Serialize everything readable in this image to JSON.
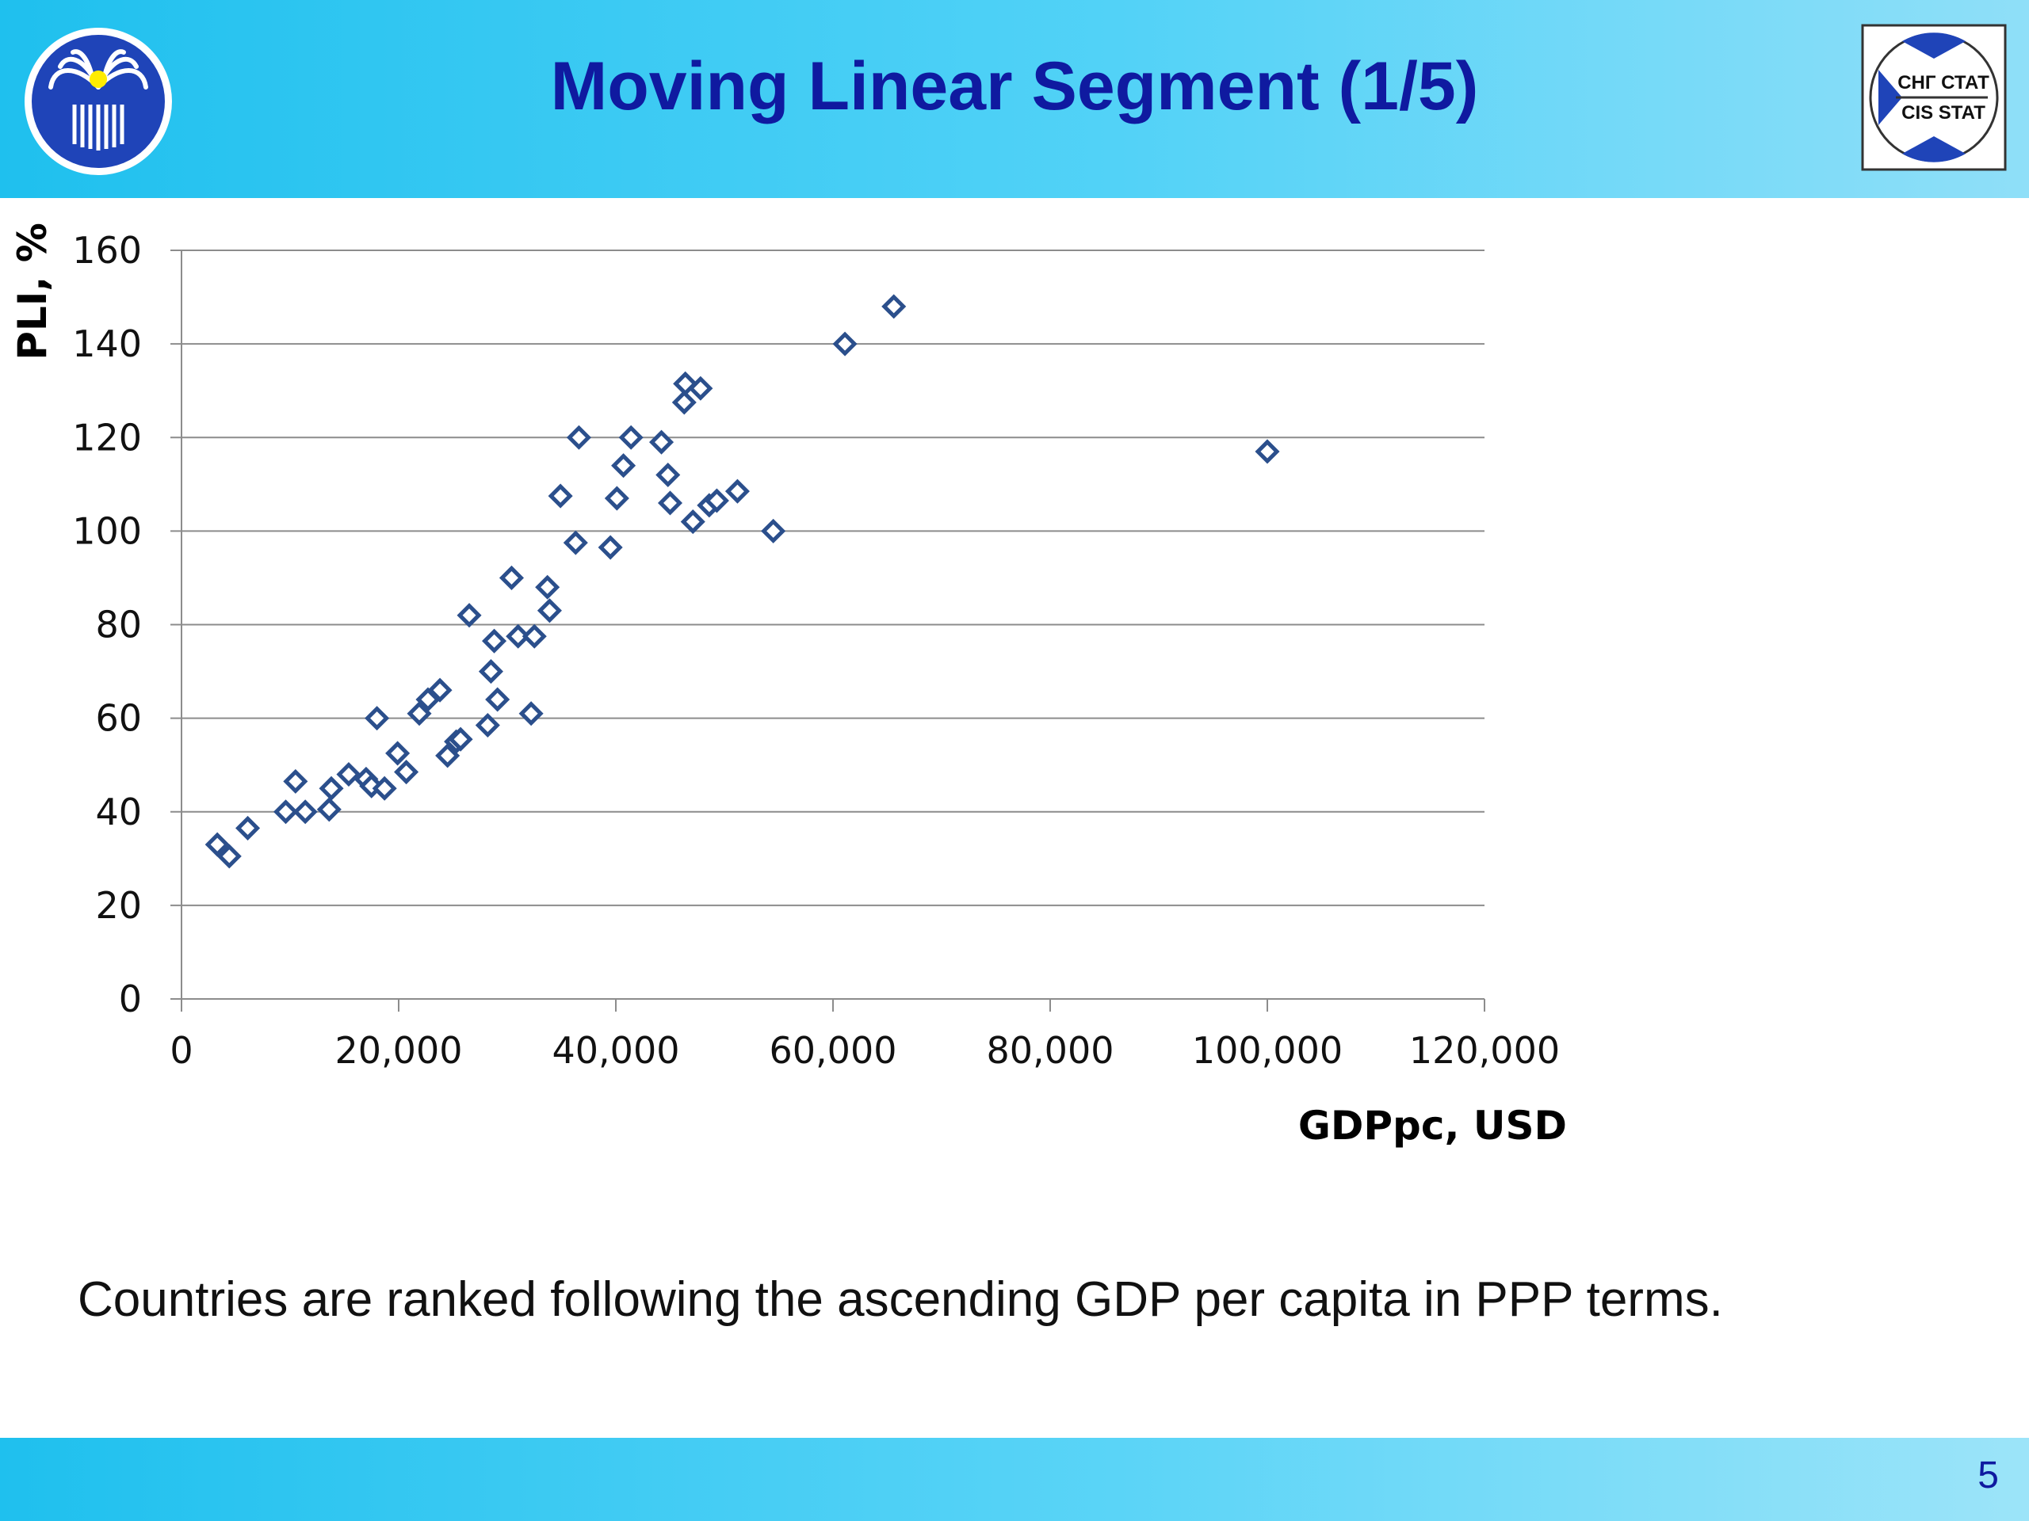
{
  "slide": {
    "title": "Moving Linear Segment (1/5)",
    "caption": "Countries are ranked following the ascending GDP per capita in PPP terms.",
    "page_number": "5",
    "logo_right": {
      "line1": "СНГ СТАТ",
      "line2": "CIS STAT"
    }
  },
  "colors": {
    "title": "#0f1aa0",
    "header": "#1fc0ee",
    "marker": "#2b4f8c",
    "grid": "#8c8c8c"
  },
  "chart_data": {
    "type": "scatter",
    "title": "",
    "xlabel": "GDPpc, USD",
    "ylabel": "PLI, %",
    "xlim": [
      0,
      120000
    ],
    "ylim": [
      0,
      160
    ],
    "xticks": [
      0,
      20000,
      40000,
      60000,
      80000,
      100000,
      120000
    ],
    "xtick_labels": [
      "0",
      "20,000",
      "40,000",
      "60,000",
      "80,000",
      "100,000",
      "120,000"
    ],
    "yticks": [
      0,
      20,
      40,
      60,
      80,
      100,
      120,
      140,
      160
    ],
    "ytick_labels": [
      "0",
      "20",
      "40",
      "60",
      "80",
      "100",
      "120",
      "140",
      "160"
    ],
    "grid": "horizontal",
    "marker": "diamond",
    "points": [
      [
        3300,
        33
      ],
      [
        4400,
        30.5
      ],
      [
        6100,
        36.5
      ],
      [
        9600,
        40
      ],
      [
        10500,
        46.5
      ],
      [
        11400,
        40
      ],
      [
        13600,
        40.5
      ],
      [
        13800,
        45
      ],
      [
        15400,
        48
      ],
      [
        17000,
        47
      ],
      [
        17500,
        45.5
      ],
      [
        18000,
        60
      ],
      [
        18700,
        45
      ],
      [
        19900,
        52.5
      ],
      [
        20700,
        48.5
      ],
      [
        21900,
        61
      ],
      [
        22700,
        64
      ],
      [
        23800,
        66
      ],
      [
        24500,
        52
      ],
      [
        25300,
        55
      ],
      [
        25700,
        55.5
      ],
      [
        26500,
        82
      ],
      [
        28200,
        58.5
      ],
      [
        28500,
        70
      ],
      [
        28800,
        76.5
      ],
      [
        29100,
        64
      ],
      [
        30400,
        90
      ],
      [
        31000,
        77.5
      ],
      [
        32200,
        61
      ],
      [
        32500,
        77.5
      ],
      [
        33700,
        88
      ],
      [
        33900,
        83
      ],
      [
        34900,
        107.5
      ],
      [
        36300,
        97.5
      ],
      [
        36600,
        120
      ],
      [
        39500,
        96.5
      ],
      [
        40100,
        107
      ],
      [
        40700,
        114
      ],
      [
        41400,
        120
      ],
      [
        44200,
        119
      ],
      [
        44800,
        112
      ],
      [
        45000,
        106
      ],
      [
        46300,
        127.5
      ],
      [
        46400,
        131.5
      ],
      [
        47100,
        102
      ],
      [
        47800,
        130.5
      ],
      [
        48600,
        105.5
      ],
      [
        49300,
        106.5
      ],
      [
        51200,
        108.5
      ],
      [
        54500,
        100
      ],
      [
        61100,
        140
      ],
      [
        65600,
        148
      ],
      [
        100000,
        117
      ]
    ]
  }
}
